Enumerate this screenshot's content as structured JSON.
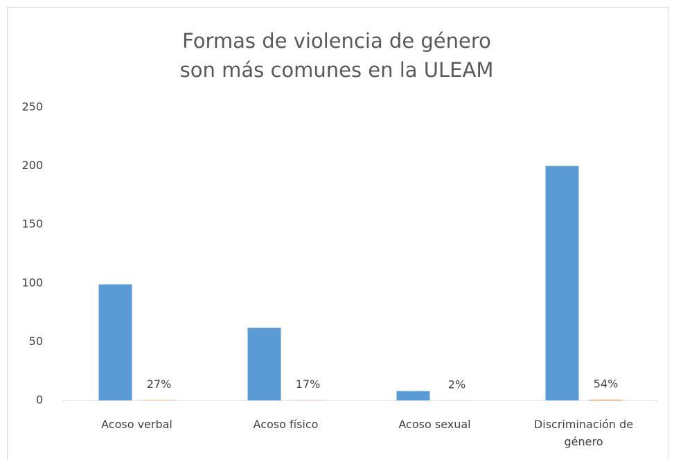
{
  "chart_data": {
    "type": "bar",
    "title": "Formas de violencia de género son más comunes en la ULEAM",
    "categories": [
      "Acoso verbal",
      "Acoso físico",
      "Acoso sexual",
      "Discriminación de género"
    ],
    "series": [
      {
        "color": "#5b9bd5",
        "values": [
          99,
          62,
          8,
          200
        ]
      },
      {
        "color": "#ed7d31",
        "values": [
          0.27,
          0.17,
          0.02,
          0.54
        ],
        "value_labels": [
          "27%",
          "17%",
          "2%",
          "54%"
        ]
      }
    ],
    "ylim": [
      0,
      250
    ],
    "yticks": [
      0,
      50,
      100,
      150,
      200,
      250
    ],
    "grid": false
  }
}
